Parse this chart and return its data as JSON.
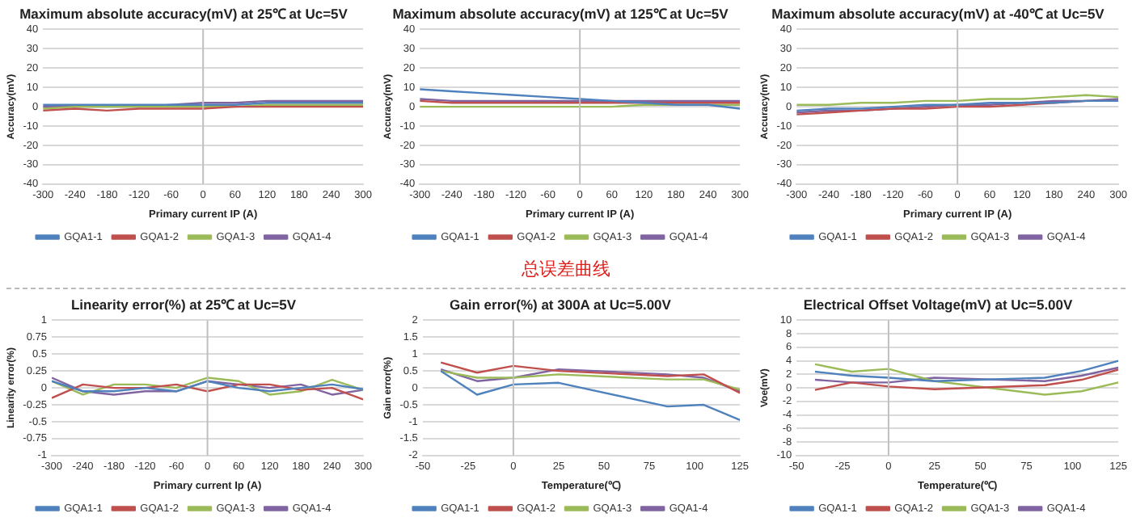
{
  "chart_data": [
    {
      "type": "line",
      "title": "Maximum absolute accuracy(mV) at 25℃ at Uc=5V",
      "xlabel": "Primary current IP (A)",
      "ylabel": "Accuracy(mV)",
      "x": [
        -300,
        -240,
        -180,
        -120,
        -60,
        0,
        60,
        120,
        180,
        240,
        300
      ],
      "series": [
        {
          "name": "GQA1-1",
          "color": "#4f81bd",
          "values": [
            1,
            1,
            1,
            1,
            1,
            1,
            1,
            2,
            2,
            2,
            2
          ]
        },
        {
          "name": "GQA1-2",
          "color": "#c0504d",
          "values": [
            -2,
            -1,
            -2,
            -1,
            -1,
            -1,
            0,
            0,
            0,
            0,
            0
          ]
        },
        {
          "name": "GQA1-3",
          "color": "#9bbb59",
          "values": [
            -1,
            0,
            0,
            0,
            0,
            0,
            0,
            1,
            1,
            1,
            1
          ]
        },
        {
          "name": "GQA1-4",
          "color": "#8064a2",
          "values": [
            0,
            0,
            0,
            0,
            1,
            2,
            2,
            3,
            3,
            3,
            3
          ]
        }
      ],
      "xlim": [
        -300,
        300
      ],
      "xticks": [
        -300,
        -240,
        -180,
        -120,
        -60,
        0,
        60,
        120,
        180,
        240,
        300
      ],
      "ylim": [
        -40,
        40
      ],
      "yticks": [
        -40,
        -30,
        -20,
        -10,
        0,
        10,
        20,
        30,
        40
      ],
      "ref_lines": [
        {
          "axis": "x",
          "value": 0
        }
      ],
      "grid": "y",
      "legend": "bottom",
      "marker": "none"
    },
    {
      "type": "line",
      "title": "Maximum absolute accuracy(mV) at 125℃ at Uc=5V",
      "xlabel": "Primary current IP (A)",
      "ylabel": "Accuracy(mV)",
      "x": [
        -300,
        -240,
        -180,
        -120,
        -60,
        0,
        60,
        120,
        180,
        240,
        300
      ],
      "series": [
        {
          "name": "GQA1-1",
          "color": "#4f81bd",
          "values": [
            9,
            8,
            7,
            6,
            5,
            4,
            3,
            2,
            1,
            1,
            -1
          ]
        },
        {
          "name": "GQA1-2",
          "color": "#c0504d",
          "values": [
            3,
            2,
            2,
            2,
            2,
            2,
            2,
            2,
            2,
            2,
            2
          ]
        },
        {
          "name": "GQA1-3",
          "color": "#9bbb59",
          "values": [
            0,
            0,
            0,
            0,
            0,
            0,
            0,
            1,
            1,
            1,
            1
          ]
        },
        {
          "name": "GQA1-4",
          "color": "#8064a2",
          "values": [
            4,
            3,
            3,
            3,
            3,
            3,
            3,
            3,
            3,
            3,
            3
          ]
        }
      ],
      "xlim": [
        -300,
        300
      ],
      "xticks": [
        -300,
        -240,
        -180,
        -120,
        -60,
        0,
        60,
        120,
        180,
        240,
        300
      ],
      "ylim": [
        -40,
        40
      ],
      "yticks": [
        -40,
        -30,
        -20,
        -10,
        0,
        10,
        20,
        30,
        40
      ],
      "ref_lines": [
        {
          "axis": "x",
          "value": 0
        }
      ],
      "grid": "y",
      "legend": "bottom",
      "marker": "none"
    },
    {
      "type": "line",
      "title": "Maximum absolute accuracy(mV) at -40℃ at Uc=5V",
      "xlabel": "Primary current IP (A)",
      "ylabel": "Accuracy(mV)",
      "x": [
        -300,
        -240,
        -180,
        -120,
        -60,
        0,
        60,
        120,
        180,
        240,
        300
      ],
      "series": [
        {
          "name": "GQA1-1",
          "color": "#4f81bd",
          "values": [
            -2,
            -1,
            -1,
            0,
            1,
            1,
            2,
            2,
            2,
            3,
            3
          ]
        },
        {
          "name": "GQA1-2",
          "color": "#c0504d",
          "values": [
            -4,
            -3,
            -2,
            -1,
            -1,
            0,
            0,
            1,
            2,
            3,
            3
          ]
        },
        {
          "name": "GQA1-3",
          "color": "#9bbb59",
          "values": [
            1,
            1,
            2,
            2,
            3,
            3,
            4,
            4,
            5,
            6,
            5
          ]
        },
        {
          "name": "GQA1-4",
          "color": "#8064a2",
          "values": [
            -3,
            -2,
            -2,
            -1,
            0,
            1,
            1,
            2,
            3,
            3,
            4
          ]
        }
      ],
      "xlim": [
        -300,
        300
      ],
      "xticks": [
        -300,
        -240,
        -180,
        -120,
        -60,
        0,
        60,
        120,
        180,
        240,
        300
      ],
      "ylim": [
        -40,
        40
      ],
      "yticks": [
        -40,
        -30,
        -20,
        -10,
        0,
        10,
        20,
        30,
        40
      ],
      "ref_lines": [
        {
          "axis": "x",
          "value": 0
        }
      ],
      "grid": "y",
      "legend": "bottom",
      "marker": "none"
    },
    {
      "type": "other",
      "title": "总误差曲线"
    },
    {
      "type": "line",
      "title": "Linearity error(%) at 25℃ at Uc=5V",
      "xlabel": "Primary current Ip (A)",
      "ylabel": "Linearity error(%)",
      "x": [
        -300,
        -240,
        -180,
        -120,
        -60,
        0,
        60,
        120,
        180,
        240,
        300
      ],
      "series": [
        {
          "name": "GQA1-1",
          "color": "#4f81bd",
          "values": [
            0.1,
            -0.05,
            -0.05,
            0,
            -0.05,
            0.1,
            0,
            -0.05,
            0,
            0.05,
            -0.02
          ]
        },
        {
          "name": "GQA1-2",
          "color": "#c0504d",
          "values": [
            -0.15,
            0.05,
            0,
            0,
            0.05,
            -0.05,
            0.05,
            0.05,
            -0.03,
            0,
            -0.17
          ]
        },
        {
          "name": "GQA1-3",
          "color": "#9bbb59",
          "values": [
            0.1,
            -0.1,
            0.05,
            0.05,
            0,
            0.15,
            0.1,
            -0.1,
            -0.05,
            0.12,
            -0.03
          ]
        },
        {
          "name": "GQA1-4",
          "color": "#8064a2",
          "values": [
            0.15,
            -0.05,
            -0.1,
            -0.05,
            -0.05,
            0.1,
            0.05,
            0,
            0.05,
            -0.1,
            -0.03
          ]
        }
      ],
      "xlim": [
        -300,
        300
      ],
      "xticks": [
        -300,
        -240,
        -180,
        -120,
        -60,
        0,
        60,
        120,
        180,
        240,
        300
      ],
      "ylim": [
        -1,
        1
      ],
      "yticks": [
        -1,
        -0.75,
        -0.5,
        -0.25,
        0,
        0.25,
        0.5,
        0.75,
        1
      ],
      "ref_lines": [
        {
          "axis": "x",
          "value": 0
        }
      ],
      "grid": "y",
      "legend": "bottom",
      "marker": "none"
    },
    {
      "type": "line",
      "title": "Gain error(%) at 300A at Uc=5.00V",
      "xlabel": "Temperature(℃)",
      "ylabel": "Gain error(%)",
      "x": [
        -40,
        -20,
        0,
        25,
        85,
        105,
        125
      ],
      "series": [
        {
          "name": "GQA1-1",
          "color": "#4f81bd",
          "values": [
            0.5,
            -0.2,
            0.1,
            0.15,
            -0.55,
            -0.5,
            -0.95
          ]
        },
        {
          "name": "GQA1-2",
          "color": "#c0504d",
          "values": [
            0.75,
            0.45,
            0.65,
            0.5,
            0.35,
            0.4,
            -0.15
          ]
        },
        {
          "name": "GQA1-3",
          "color": "#9bbb59",
          "values": [
            0.5,
            0.3,
            0.3,
            0.4,
            0.25,
            0.25,
            -0.05
          ]
        },
        {
          "name": "GQA1-4",
          "color": "#8064a2",
          "values": [
            0.55,
            0.2,
            0.3,
            0.55,
            0.4,
            0.3,
            -0.1
          ]
        }
      ],
      "xlim": [
        -50,
        125
      ],
      "xticks": [
        -50,
        -25,
        0,
        25,
        50,
        75,
        100,
        125
      ],
      "ylim": [
        -2,
        2
      ],
      "yticks": [
        -2,
        -1.5,
        -1,
        -0.5,
        0,
        0.5,
        1,
        1.5,
        2
      ],
      "ref_lines": [
        {
          "axis": "x",
          "value": 0
        }
      ],
      "grid": "y",
      "legend": "bottom",
      "marker": "none"
    },
    {
      "type": "line",
      "title": "Electrical Offset Voltage(mV) at Uc=5.00V",
      "xlabel": "Temperature(℃)",
      "ylabel": "Voe(mV)",
      "x": [
        -40,
        -20,
        0,
        25,
        85,
        105,
        125
      ],
      "series": [
        {
          "name": "GQA1-1",
          "color": "#4f81bd",
          "values": [
            2.4,
            1.8,
            1.5,
            1,
            1.5,
            2.5,
            4
          ]
        },
        {
          "name": "GQA1-2",
          "color": "#c0504d",
          "values": [
            -0.3,
            0.8,
            0.2,
            -0.2,
            0.4,
            1.2,
            2.7
          ]
        },
        {
          "name": "GQA1-3",
          "color": "#9bbb59",
          "values": [
            3.5,
            2.4,
            2.8,
            1,
            -1,
            -0.5,
            0.8
          ]
        },
        {
          "name": "GQA1-4",
          "color": "#8064a2",
          "values": [
            1.2,
            0.8,
            0.8,
            1.5,
            1,
            1.8,
            3
          ]
        }
      ],
      "xlim": [
        -50,
        125
      ],
      "xticks": [
        -50,
        -25,
        0,
        25,
        50,
        75,
        100,
        125
      ],
      "ylim": [
        -10,
        10
      ],
      "yticks": [
        -10,
        -8,
        -6,
        -4,
        -2,
        0,
        2,
        4,
        6,
        8,
        10
      ],
      "ref_lines": [
        {
          "axis": "x",
          "value": 0
        }
      ],
      "grid": "y",
      "legend": "bottom",
      "marker": "none"
    }
  ]
}
